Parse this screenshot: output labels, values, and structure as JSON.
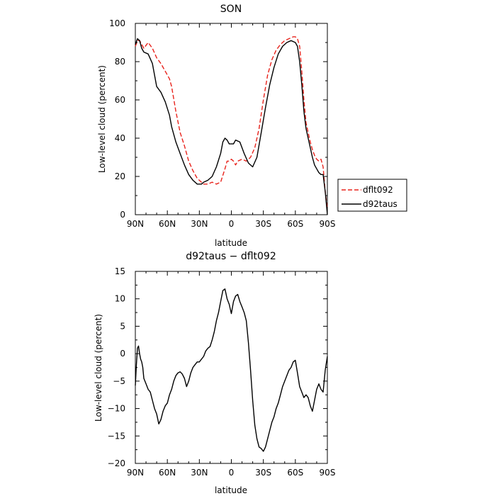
{
  "chart_data": [
    {
      "type": "line",
      "title": "SON",
      "xlabel": "latitude",
      "ylabel": "Low-level cloud (percent)",
      "xlim": [
        90,
        -90
      ],
      "ylim": [
        0,
        100
      ],
      "x_ticks": [
        90,
        60,
        30,
        0,
        -30,
        -60,
        -90
      ],
      "x_tick_labels": [
        "90N",
        "60N",
        "30N",
        "0",
        "30S",
        "60S",
        "90S"
      ],
      "y_ticks": [
        0,
        20,
        40,
        60,
        80,
        100
      ],
      "y_tick_labels": [
        "0",
        "20",
        "40",
        "60",
        "80",
        "100"
      ],
      "legend_position": "right",
      "series": [
        {
          "name": "dflt092",
          "color": "#e8231c",
          "dash": "dashed",
          "x": [
            90,
            88,
            86,
            84,
            82,
            78,
            74,
            70,
            66,
            62,
            58,
            56,
            52,
            48,
            44,
            40,
            36,
            32,
            28,
            26,
            22,
            18,
            14,
            10,
            6,
            4,
            2,
            0,
            -2,
            -4,
            -6,
            -10,
            -14,
            -18,
            -22,
            -26,
            -30,
            -34,
            -38,
            -42,
            -46,
            -50,
            -54,
            -58,
            -60,
            -62,
            -64,
            -66,
            -68,
            -70,
            -72,
            -74,
            -76,
            -78,
            -80,
            -82,
            -84,
            -86,
            -88,
            -90
          ],
          "y": [
            88,
            91,
            91,
            89,
            87,
            90,
            87,
            82,
            79,
            75,
            71,
            67,
            54,
            43,
            36,
            28,
            23,
            19,
            17,
            16,
            16,
            17,
            16,
            17,
            24,
            28,
            28,
            29,
            28,
            26,
            28,
            29,
            28,
            30,
            35,
            45,
            60,
            73,
            81,
            86,
            89,
            91,
            92,
            93,
            93,
            92,
            88,
            75,
            60,
            48,
            43,
            38,
            34,
            31,
            29,
            28,
            29,
            25,
            12,
            3
          ]
        },
        {
          "name": "d92taus",
          "color": "#000000",
          "dash": "solid",
          "x": [
            90,
            88,
            86,
            84,
            82,
            78,
            74,
            70,
            66,
            62,
            58,
            56,
            52,
            48,
            44,
            40,
            36,
            32,
            28,
            26,
            22,
            18,
            14,
            10,
            8,
            6,
            4,
            2,
            0,
            -2,
            -4,
            -8,
            -12,
            -16,
            -20,
            -24,
            -28,
            -32,
            -36,
            -40,
            -44,
            -48,
            -52,
            -56,
            -60,
            -62,
            -64,
            -66,
            -68,
            -70,
            -72,
            -74,
            -76,
            -78,
            -80,
            -82,
            -84,
            -86,
            -88,
            -90
          ],
          "y": [
            89,
            92,
            91,
            87,
            85,
            84,
            79,
            67,
            64,
            59,
            52,
            46,
            38,
            32,
            26,
            21,
            18,
            16,
            16,
            17,
            18,
            20,
            25,
            32,
            38,
            40,
            39,
            37,
            37,
            37,
            39,
            38,
            32,
            27,
            25,
            30,
            43,
            56,
            68,
            77,
            84,
            88,
            90,
            91,
            90,
            88,
            80,
            68,
            54,
            45,
            40,
            35,
            30,
            26,
            24,
            22,
            21,
            21,
            12,
            0
          ]
        }
      ]
    },
    {
      "type": "line",
      "title": "d92taus − dflt092",
      "xlabel": "latitude",
      "ylabel": "Low-level cloud (percent)",
      "xlim": [
        90,
        -90
      ],
      "ylim": [
        -20,
        15
      ],
      "x_ticks": [
        90,
        60,
        30,
        0,
        -30,
        -60,
        -90
      ],
      "x_tick_labels": [
        "90N",
        "60N",
        "30N",
        "0",
        "30S",
        "60S",
        "90S"
      ],
      "y_ticks": [
        -20,
        -15,
        -10,
        -5,
        0,
        5,
        10,
        15
      ],
      "y_tick_labels": [
        "−20",
        "−15",
        "−10",
        "−5",
        "0",
        "5",
        "10",
        "15"
      ],
      "series": [
        {
          "color": "#000000",
          "dash": "solid",
          "x": [
            90,
            89,
            88,
            87,
            86,
            85,
            84,
            83,
            82,
            80,
            78,
            76,
            74,
            72,
            70,
            68,
            66,
            64,
            62,
            60,
            58,
            56,
            54,
            52,
            50,
            48,
            46,
            44,
            42,
            40,
            38,
            36,
            34,
            32,
            30,
            28,
            26,
            24,
            22,
            20,
            18,
            16,
            14,
            12,
            10,
            8,
            6,
            4,
            2,
            0,
            -2,
            -4,
            -6,
            -8,
            -10,
            -12,
            -14,
            -16,
            -18,
            -20,
            -22,
            -24,
            -26,
            -28,
            -30,
            -32,
            -34,
            -36,
            -38,
            -40,
            -42,
            -44,
            -46,
            -48,
            -50,
            -52,
            -54,
            -56,
            -58,
            -60,
            -62,
            -64,
            -66,
            -68,
            -70,
            -72,
            -74,
            -76,
            -78,
            -80,
            -82,
            -84,
            -86,
            -88,
            -90
          ],
          "y": [
            -5.8,
            -2.0,
            1.0,
            1.4,
            0,
            -1.0,
            -1.5,
            -2.5,
            -4.5,
            -5.5,
            -6.5,
            -7.0,
            -8.5,
            -10.0,
            -11.0,
            -12.8,
            -12.0,
            -10.5,
            -9.5,
            -9.0,
            -7.5,
            -6.5,
            -5.0,
            -4.0,
            -3.5,
            -3.3,
            -3.7,
            -4.5,
            -6.0,
            -5.0,
            -3.5,
            -2.5,
            -2.0,
            -1.5,
            -1.5,
            -1.0,
            -0.5,
            0.5,
            1.0,
            1.3,
            2.5,
            4.0,
            6.0,
            7.5,
            9.5,
            11.5,
            11.8,
            10.0,
            9.0,
            7.3,
            9.5,
            10.5,
            10.8,
            9.5,
            8.5,
            7.5,
            6.0,
            2.0,
            -3.0,
            -8.5,
            -13.0,
            -15.5,
            -17.0,
            -17.3,
            -17.8,
            -17.0,
            -15.5,
            -14.0,
            -12.5,
            -11.5,
            -10.0,
            -9.0,
            -7.5,
            -6.0,
            -5.0,
            -4.0,
            -3.0,
            -2.5,
            -1.5,
            -1.2,
            -3.5,
            -6.0,
            -7.0,
            -8.0,
            -7.5,
            -8.0,
            -9.5,
            -10.5,
            -8.5,
            -6.5,
            -5.5,
            -6.5,
            -7.0,
            -3.0,
            -0.5
          ]
        }
      ]
    }
  ]
}
